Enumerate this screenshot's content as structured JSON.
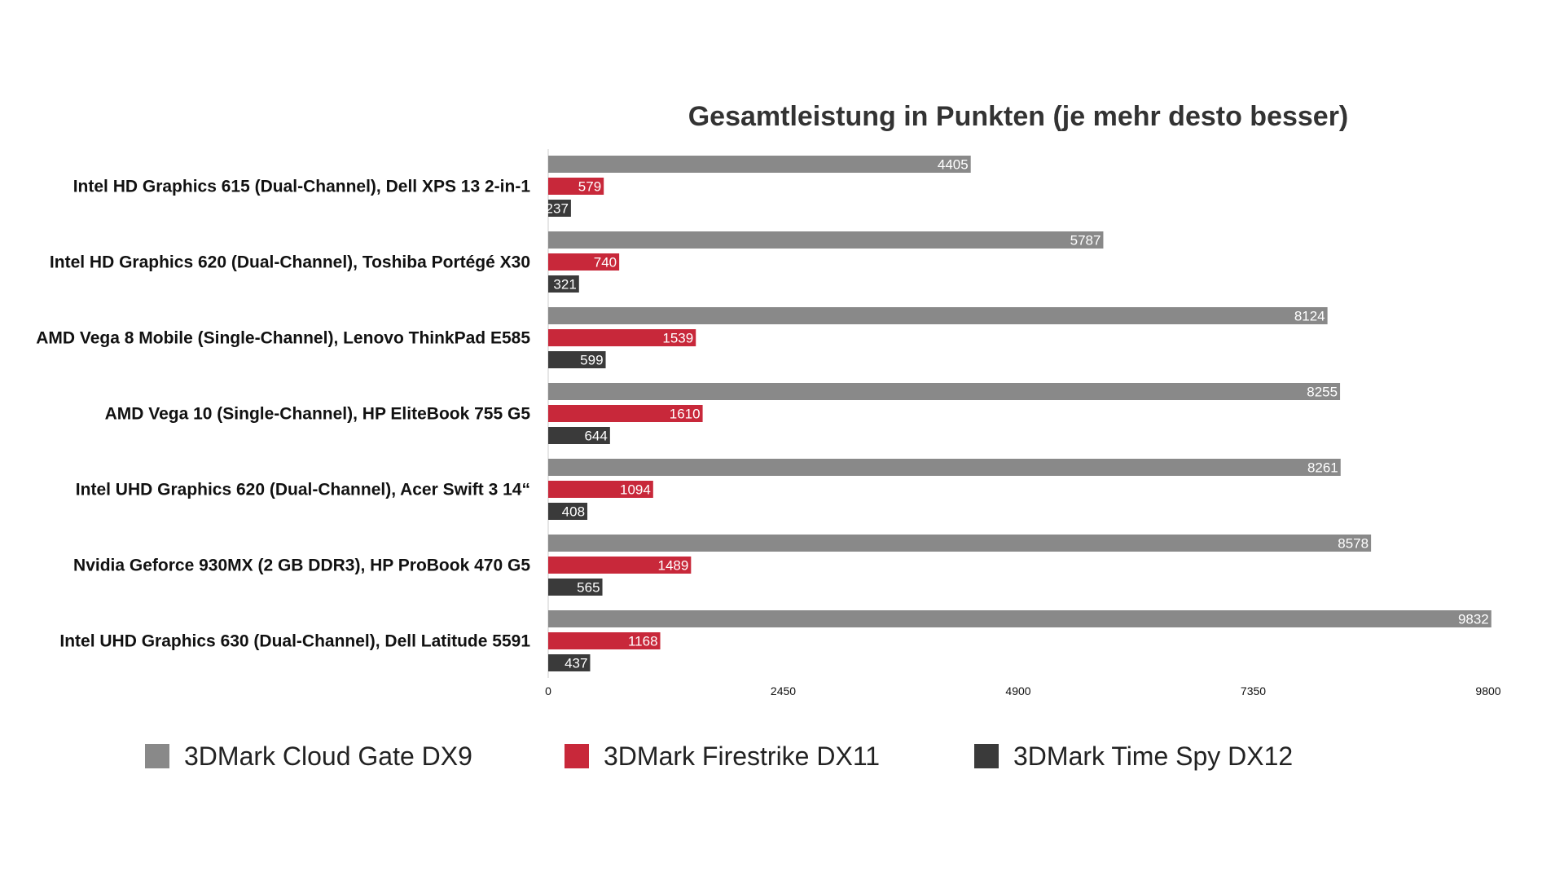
{
  "chart_data": {
    "type": "bar",
    "orientation": "horizontal",
    "title": "Gesamtleistung in Punkten (je mehr desto besser)",
    "xlabel": "",
    "ylabel": "",
    "xlim": [
      0,
      9800
    ],
    "ticks": [
      "0",
      "2450",
      "4900",
      "7350",
      "9800"
    ],
    "tick_values": [
      0,
      2450,
      4900,
      7350,
      9800
    ],
    "grid": false,
    "legend_position": "bottom",
    "categories": [
      "Intel HD Graphics 615 (Dual-Channel), Dell XPS 13 2-in-1",
      "Intel HD Graphics 620 (Dual-Channel), Toshiba Portégé X30",
      "AMD Vega 8 Mobile (Single-Channel), Lenovo ThinkPad E585",
      "AMD Vega 10 (Single-Channel), HP EliteBook 755 G5",
      "Intel UHD Graphics 620 (Dual-Channel), Acer Swift 3 14“",
      "Nvidia Geforce 930MX (2 GB DDR3), HP ProBook 470 G5",
      "Intel UHD Graphics 630 (Dual-Channel), Dell Latitude 5591"
    ],
    "series": [
      {
        "name": "3DMark Cloud Gate DX9",
        "color": "#898989",
        "values": [
          4405,
          5787,
          8124,
          8255,
          8261,
          8578,
          9832
        ]
      },
      {
        "name": "3DMark Firestrike DX11",
        "color": "#c8283a",
        "values": [
          579,
          740,
          1539,
          1610,
          1094,
          1489,
          1168
        ]
      },
      {
        "name": "3DMark Time Spy DX12",
        "color": "#3a3a3a",
        "values": [
          237,
          321,
          599,
          644,
          408,
          565,
          437
        ]
      }
    ]
  }
}
